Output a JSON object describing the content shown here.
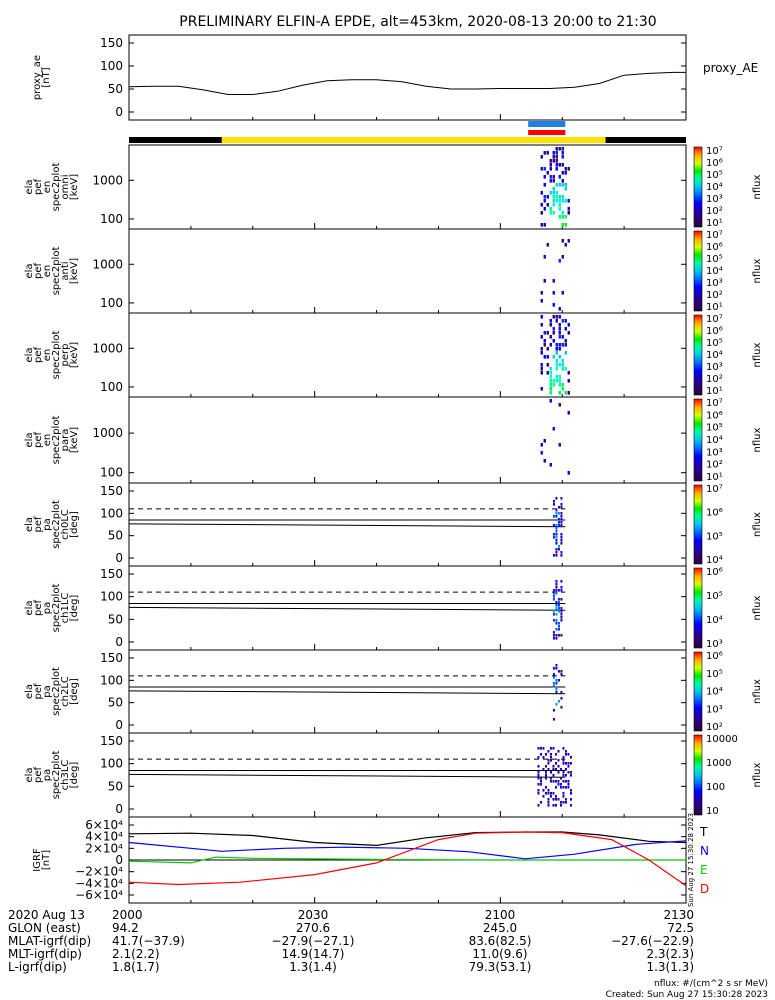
{
  "title": "PRELIMINARY ELFIN-A EPDE, alt=453km, 2020-08-13 20:00 to 21:30",
  "chart_data": {
    "type": "spectrogram-stack",
    "time_range": [
      "20:00",
      "21:30"
    ],
    "panels": [
      {
        "id": "proxy_ae",
        "type": "line",
        "ylabel": [
          "proxy_ae",
          "[nT]"
        ],
        "yticks": [
          "150",
          "100",
          "50",
          "0"
        ],
        "ylim": [
          0,
          150
        ],
        "legend": "proxy_AE",
        "x_minutes": [
          0,
          4,
          8,
          12,
          16,
          20,
          24,
          28,
          32,
          36,
          40,
          44,
          48,
          52,
          56,
          60,
          64,
          68,
          72,
          76,
          80,
          84,
          88,
          90
        ],
        "values": [
          55,
          56,
          56,
          48,
          38,
          38,
          45,
          58,
          68,
          70,
          70,
          66,
          56,
          50,
          50,
          51,
          51,
          51,
          54,
          62,
          80,
          84,
          86,
          86
        ]
      },
      {
        "id": "omni",
        "type": "heatmap",
        "ylabel": [
          "ela",
          "pef",
          "en",
          "spec2plot",
          "omni",
          "[keV]"
        ],
        "yticks": [
          "1000",
          "100"
        ],
        "colorbar": {
          "label": "nflux",
          "ticks": [
            "10⁷",
            "10⁶",
            "10⁵",
            "10⁴",
            "10³",
            "10²",
            "10¹"
          ]
        }
      },
      {
        "id": "anti",
        "type": "heatmap",
        "ylabel": [
          "ela",
          "pef",
          "en",
          "spec2plot",
          "anti",
          "[keV]"
        ],
        "yticks": [
          "1000",
          "100"
        ],
        "colorbar": {
          "label": "nflux",
          "ticks": [
            "10⁷",
            "10⁶",
            "10⁵",
            "10⁴",
            "10³",
            "10²",
            "10¹"
          ]
        }
      },
      {
        "id": "perp",
        "type": "heatmap",
        "ylabel": [
          "ela",
          "pef",
          "en",
          "spec2plot",
          "perp",
          "[keV]"
        ],
        "yticks": [
          "1000",
          "100"
        ],
        "colorbar": {
          "label": "nflux",
          "ticks": [
            "10⁷",
            "10⁶",
            "10⁵",
            "10⁴",
            "10³",
            "10²",
            "10¹"
          ]
        }
      },
      {
        "id": "para",
        "type": "heatmap",
        "ylabel": [
          "ela",
          "pef",
          "en",
          "spec2plot",
          "para",
          "[keV]"
        ],
        "yticks": [
          "1000",
          "100"
        ],
        "colorbar": {
          "label": "nflux",
          "ticks": [
            "10⁷",
            "10⁶",
            "10⁵",
            "10⁴",
            "10³",
            "10²",
            "10¹"
          ]
        }
      },
      {
        "id": "ch0LC",
        "type": "heatmap",
        "ylabel": [
          "ela",
          "pef",
          "pa",
          "spec2plot",
          "ch0LC",
          "[deg]"
        ],
        "yticks": [
          "150",
          "100",
          "50",
          "0"
        ],
        "colorbar": {
          "label": "nflux",
          "ticks": [
            "10⁷",
            "10⁶",
            "10⁵",
            "10⁴"
          ]
        }
      },
      {
        "id": "ch1LC",
        "type": "heatmap",
        "ylabel": [
          "ela",
          "pef",
          "pa",
          "spec2plot",
          "ch1LC",
          "[deg]"
        ],
        "yticks": [
          "150",
          "100",
          "50",
          "0"
        ],
        "colorbar": {
          "label": "nflux",
          "ticks": [
            "10⁶",
            "10⁵",
            "10⁴",
            "10³"
          ]
        }
      },
      {
        "id": "ch2LC",
        "type": "heatmap",
        "ylabel": [
          "ela",
          "pef",
          "pa",
          "spec2plot",
          "ch2LC",
          "[deg]"
        ],
        "yticks": [
          "150",
          "100",
          "50",
          "0"
        ],
        "colorbar": {
          "label": "nflux",
          "ticks": [
            "10⁶",
            "10⁵",
            "10⁴",
            "10³",
            "10²"
          ]
        }
      },
      {
        "id": "ch3LC",
        "type": "heatmap",
        "ylabel": [
          "ela",
          "pef",
          "pa",
          "spec2plot",
          "ch3LC",
          "[deg]"
        ],
        "yticks": [
          "150",
          "100",
          "50",
          "0"
        ],
        "colorbar": {
          "label": "nflux",
          "ticks": [
            "10000",
            "1000",
            "100",
            "10"
          ]
        }
      },
      {
        "id": "igrf",
        "type": "line",
        "ylabel": [
          "IGRF",
          "[nT]"
        ],
        "yticks": [
          "6×10⁴",
          "4×10⁴",
          "2×10⁴",
          "0",
          "−2×10⁴",
          "−4×10⁴",
          "−6×10⁴"
        ],
        "ylim": [
          -60000,
          60000
        ],
        "legend": [
          "T",
          "N",
          "E",
          "D"
        ],
        "legend_colors": [
          "#000000",
          "#0000ff",
          "#00cc00",
          "#ff0000"
        ]
      }
    ],
    "lossCone_deg": [
      60,
      80,
      110
    ],
    "xticks": [
      "2000",
      "2030",
      "2100",
      "2130"
    ]
  },
  "orbit": {
    "rows": [
      {
        "label": "2020 Aug 13",
        "values": [
          "2000",
          "2030",
          "2100",
          "2130"
        ]
      },
      {
        "label": "GLON (east)",
        "values": [
          "94.2",
          "270.6",
          "245.0",
          "72.5"
        ]
      },
      {
        "label": "MLAT-igrf(dip)",
        "values": [
          "41.7(−37.9)",
          "−27.9(−27.1)",
          "83.6(82.5)",
          "−27.6(−22.9)"
        ]
      },
      {
        "label": "MLT-igrf(dip)",
        "values": [
          "2.1(2.2)",
          "14.9(14.7)",
          "11.0(9.6)",
          "2.3(2.3)"
        ]
      },
      {
        "label": "L-igrf(dip)",
        "values": [
          "1.8(1.7)",
          "1.3(1.4)",
          "79.3(53.1)",
          "1.3(1.3)"
        ]
      }
    ]
  },
  "footer": {
    "units": "nflux: #/(cm^2 s sr MeV)",
    "created": "Created: Sun Aug 27 15:30:28 2023",
    "side_stamp": "Sun Aug 27 15:30:28 2023"
  }
}
